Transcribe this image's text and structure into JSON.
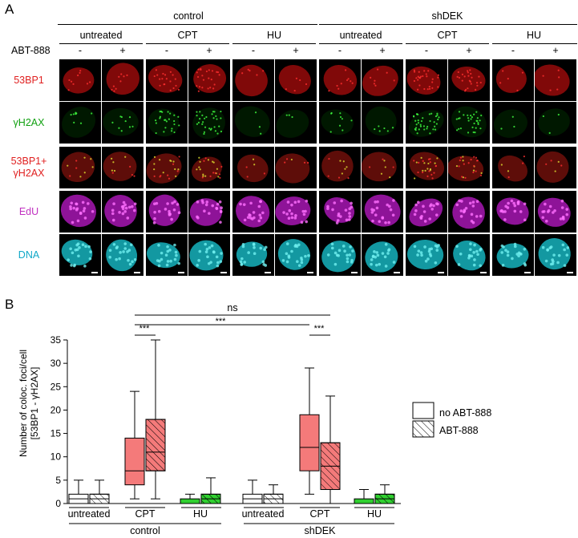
{
  "panel_a": {
    "letter": "A",
    "groups": [
      "control",
      "shDEK"
    ],
    "treatments": [
      "untreated",
      "CPT",
      "HU",
      "untreated",
      "CPT",
      "HU"
    ],
    "abt_label": "ABT-888",
    "signs": [
      "-",
      "+",
      "-",
      "+",
      "-",
      "+",
      "-",
      "+",
      "-",
      "+",
      "-",
      "+"
    ],
    "rows": [
      {
        "label": "53BP1",
        "color": "#e02020"
      },
      {
        "label": "γH2AX",
        "color": "#10a010"
      },
      {
        "label": "53BP1+\nγH2AX",
        "color": "#e02020"
      },
      {
        "label": "EdU",
        "color": "#c030c0"
      },
      {
        "label": "DNA",
        "color": "#10a8c8"
      }
    ]
  },
  "panel_b": {
    "letter": "B",
    "legend": [
      "no ABT-888",
      "ABT-888"
    ],
    "significance": [
      "ns",
      "***",
      "***",
      "***"
    ]
  },
  "chart_data": {
    "type": "box",
    "ylabel": "Number of coloc. foci/cell\n[53BP1 - γH2AX]",
    "ylim": [
      0,
      35
    ],
    "yticks": [
      0,
      5,
      10,
      15,
      20,
      25,
      30,
      35
    ],
    "categories": [
      "untreated",
      "CPT",
      "HU",
      "untreated",
      "CPT",
      "HU"
    ],
    "groups": [
      "control",
      "shDEK"
    ],
    "colors": {
      "untreated": "#ffffff",
      "CPT": "#f47a7a",
      "HU": "#30d030"
    },
    "series": [
      {
        "name": "no ABT-888",
        "boxes": [
          {
            "min": 0,
            "q1": 0,
            "median": 1,
            "q3": 2,
            "max": 5
          },
          {
            "min": 1,
            "q1": 4,
            "median": 7,
            "q3": 14,
            "max": 24
          },
          {
            "min": 0,
            "q1": 0,
            "median": 0,
            "q3": 1,
            "max": 2
          },
          {
            "min": 0,
            "q1": 0,
            "median": 1,
            "q3": 2,
            "max": 5
          },
          {
            "min": 2,
            "q1": 7,
            "median": 12,
            "q3": 19,
            "max": 29
          },
          {
            "min": 0,
            "q1": 0,
            "median": 0,
            "q3": 1,
            "max": 3
          }
        ]
      },
      {
        "name": "ABT-888",
        "boxes": [
          {
            "min": 0,
            "q1": 0,
            "median": 1,
            "q3": 2,
            "max": 5
          },
          {
            "min": 1,
            "q1": 7,
            "median": 11,
            "q3": 18,
            "max": 35
          },
          {
            "min": 0,
            "q1": 0,
            "median": 1,
            "q3": 2,
            "max": 5.5
          },
          {
            "min": 0,
            "q1": 0,
            "median": 1,
            "q3": 2,
            "max": 4
          },
          {
            "min": 0,
            "q1": 3,
            "median": 8,
            "q3": 13,
            "max": 23
          },
          {
            "min": 0,
            "q1": 0,
            "median": 1,
            "q3": 2,
            "max": 4
          }
        ]
      }
    ]
  }
}
